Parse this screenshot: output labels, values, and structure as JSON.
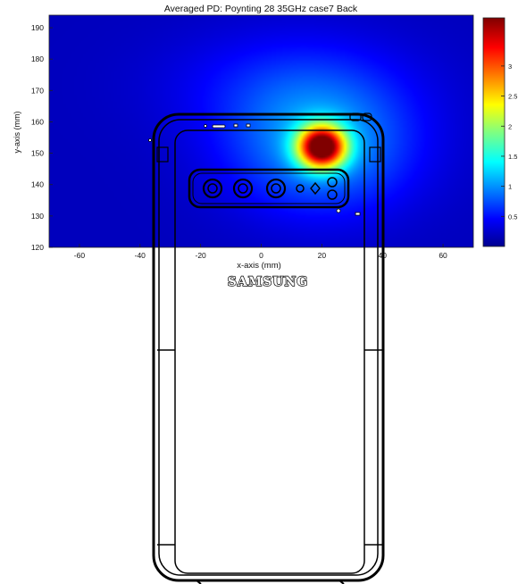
{
  "chart_data": {
    "type": "heatmap",
    "title": "Averaged PD:  Poynting 28 35GHz case7 Back",
    "xlabel": "x-axis (mm)",
    "ylabel": "y-axis (mm)",
    "xlim": [
      -70,
      70
    ],
    "ylim": [
      120,
      194
    ],
    "x_ticks": [
      "-60",
      "-40",
      "-20",
      "0",
      "20",
      "40",
      "60"
    ],
    "x_tick_values": [
      -60,
      -40,
      -20,
      0,
      20,
      40,
      60
    ],
    "y_ticks": [
      "190",
      "180",
      "170",
      "160",
      "150",
      "140",
      "130",
      "120"
    ],
    "y_tick_values": [
      190,
      180,
      170,
      160,
      150,
      140,
      130,
      120
    ],
    "colormap": "jet",
    "color_range": [
      0,
      3.8
    ],
    "colorbar_ticks": [
      "3",
      "2.5",
      "2",
      "1.5",
      "1",
      "0.5"
    ],
    "colorbar_tick_values": [
      3,
      2.5,
      2,
      1.5,
      1,
      0.5
    ],
    "hotspot": {
      "x": 20,
      "y": 152,
      "peak": 3.7
    },
    "grid": false
  },
  "overlay": {
    "device": "phone back outline",
    "logo_text": "SAMSUNG"
  },
  "colors": {
    "colormap_low": "#00008f",
    "colormap_high": "#800000"
  }
}
